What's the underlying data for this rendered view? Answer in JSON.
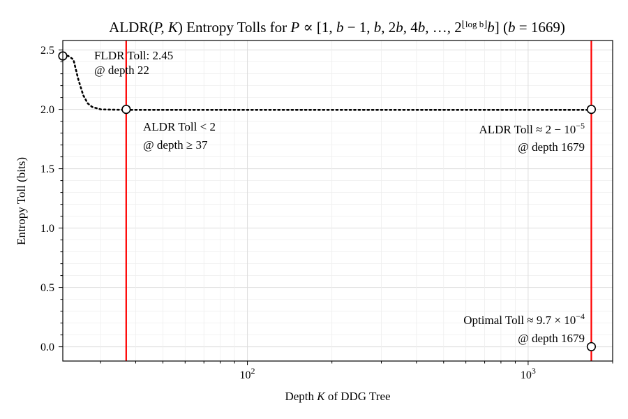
{
  "chart_data": {
    "type": "line",
    "title": "ALDR(P,K) Entropy Tolls for P ∝ [1, b−1, b, 2b, 4b, …, 2^⌊log b⌋ b] (b = 1669)",
    "title_parts": {
      "pre": "ALDR(",
      "vars": "P, K",
      "mid": ") Entropy Tolls for ",
      "p": "P",
      "prop": " ∝ [1, ",
      "b1": "b",
      "seq": " − 1, ",
      "b2": "b",
      "seq2": ", 2",
      "b3": "b",
      "seq3": ", 4",
      "b4": "b",
      "seq4": ", …, 2",
      "exp": "⌊log b⌋",
      "b5": "b",
      "close": "] (",
      "b6": "b",
      "eq": " = 1669)"
    },
    "xlabel_parts": {
      "pre": "Depth ",
      "var": "K",
      "post": " of DDG Tree"
    },
    "ylabel": "Entropy Toll (bits)",
    "xscale": "log",
    "xlim": [
      22,
      2000
    ],
    "ylim": [
      -0.12,
      2.58
    ],
    "y_ticks": [
      "0.0",
      "0.5",
      "1.0",
      "1.5",
      "2.0",
      "2.5"
    ],
    "x_ticks": [
      {
        "base": "10",
        "exp": "2"
      },
      {
        "base": "10",
        "exp": "3"
      }
    ],
    "grid": true,
    "series": [
      {
        "style": "dotted",
        "color": "#000000",
        "x": [
          22,
          23,
          24,
          25,
          26,
          27,
          28,
          29,
          30,
          32,
          34,
          37,
          40,
          50,
          100,
          200,
          500,
          1000,
          1679
        ],
        "y": [
          2.45,
          2.45,
          2.42,
          2.25,
          2.12,
          2.05,
          2.02,
          2.01,
          2.0,
          1.998,
          1.997,
          1.996,
          1.996,
          1.996,
          1.996,
          1.996,
          1.996,
          1.996,
          1.996
        ]
      }
    ],
    "vlines": [
      {
        "x": 37,
        "color": "#ff0000"
      },
      {
        "x": 1679,
        "color": "#ff0000"
      }
    ],
    "markers": [
      {
        "x": 22,
        "y": 2.45
      },
      {
        "x": 37,
        "y": 2.0
      },
      {
        "x": 1679,
        "y": 2.0
      },
      {
        "x": 1679,
        "y": 0.00097
      }
    ],
    "annotations": {
      "fldr_line1": "FLDR Toll: 2.45",
      "fldr_line2": "@ depth 22",
      "aldr_lt2_line1": "ALDR Toll < 2",
      "aldr_lt2_line2": "@ depth ≥ 37",
      "aldr_approx_line1": "ALDR Toll ≈ 2 − 10",
      "aldr_approx_exp": "−5",
      "aldr_approx_line2": "@ depth 1679",
      "optimal_line1": "Optimal Toll ≈ 9.7 × 10",
      "optimal_exp": "−4",
      "optimal_line2": "@ depth 1679"
    }
  }
}
